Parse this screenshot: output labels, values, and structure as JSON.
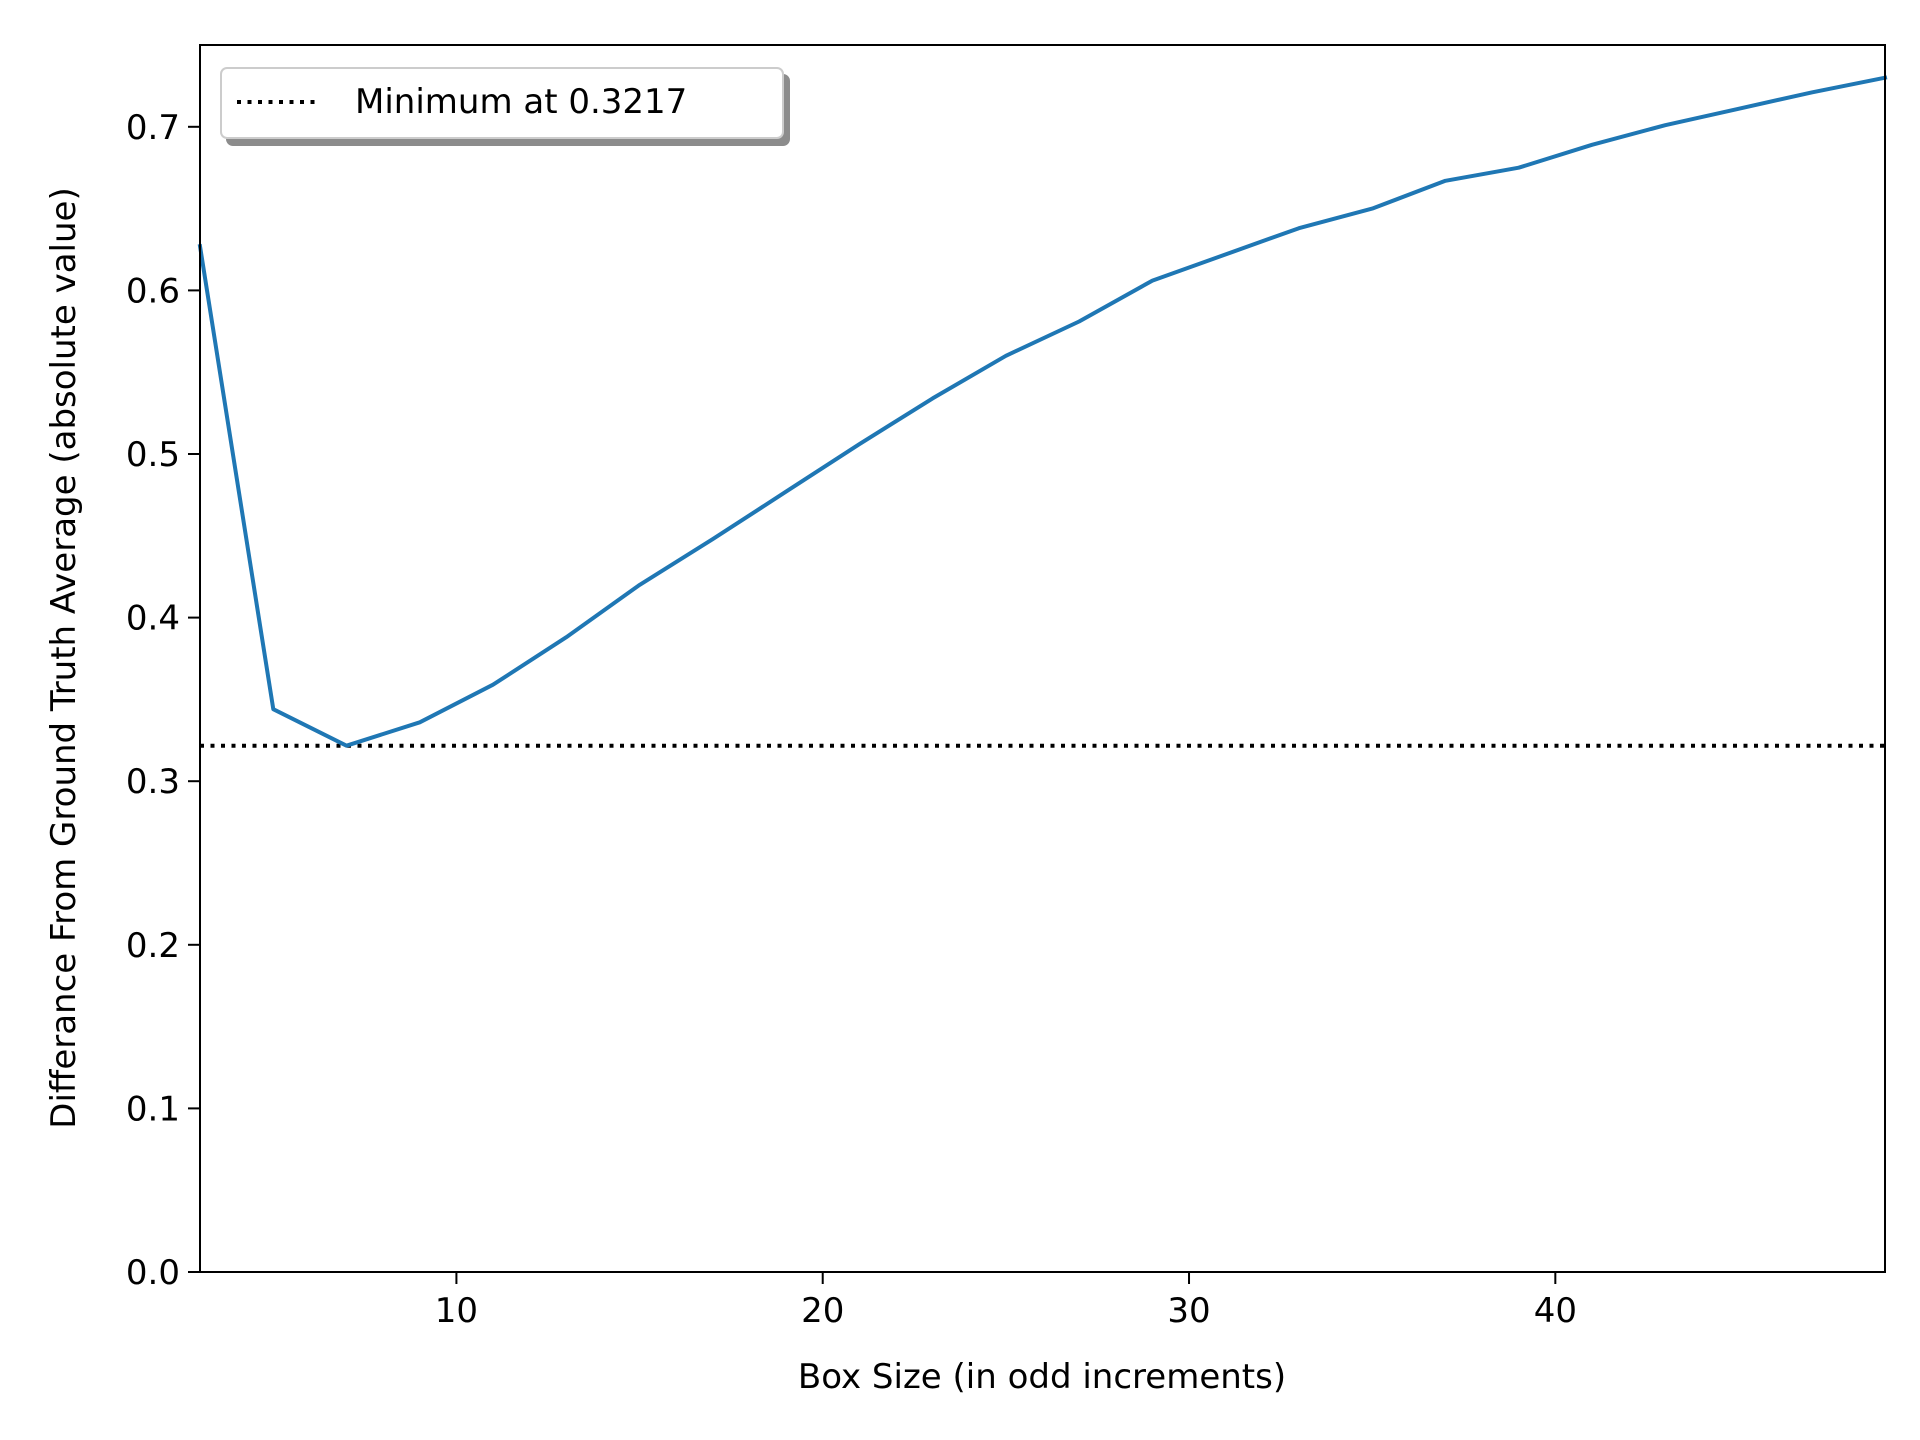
{
  "chart_data": {
    "type": "line",
    "title": "",
    "xlabel": "Box Size (in odd increments)",
    "ylabel": "Differance From Ground Truth Average (absolute value)",
    "xlim": [
      3,
      49
    ],
    "ylim": [
      0.0,
      0.75
    ],
    "xticks": [
      10,
      20,
      30,
      40
    ],
    "yticks": [
      0.0,
      0.1,
      0.2,
      0.3,
      0.4,
      0.5,
      0.6,
      0.7
    ],
    "grid": false,
    "legend_placement": "upper-left",
    "series": [
      {
        "color": "#1f77b4",
        "x": [
          3,
          5,
          7,
          9,
          11,
          13,
          15,
          17,
          19,
          21,
          23,
          25,
          27,
          29,
          31,
          33,
          35,
          37,
          39,
          41,
          43,
          45,
          47,
          49
        ],
        "y": [
          0.627,
          0.344,
          0.3217,
          0.336,
          0.359,
          0.388,
          0.42,
          0.448,
          0.477,
          0.506,
          0.534,
          0.56,
          0.581,
          0.606,
          0.622,
          0.638,
          0.65,
          0.667,
          0.675,
          0.689,
          0.701,
          0.711,
          0.721,
          0.73
        ]
      }
    ],
    "reference_line": {
      "orientation": "horizontal",
      "y": 0.3217,
      "style": "dotted",
      "color": "#000000",
      "label": "Minimum at 0.3217"
    }
  }
}
